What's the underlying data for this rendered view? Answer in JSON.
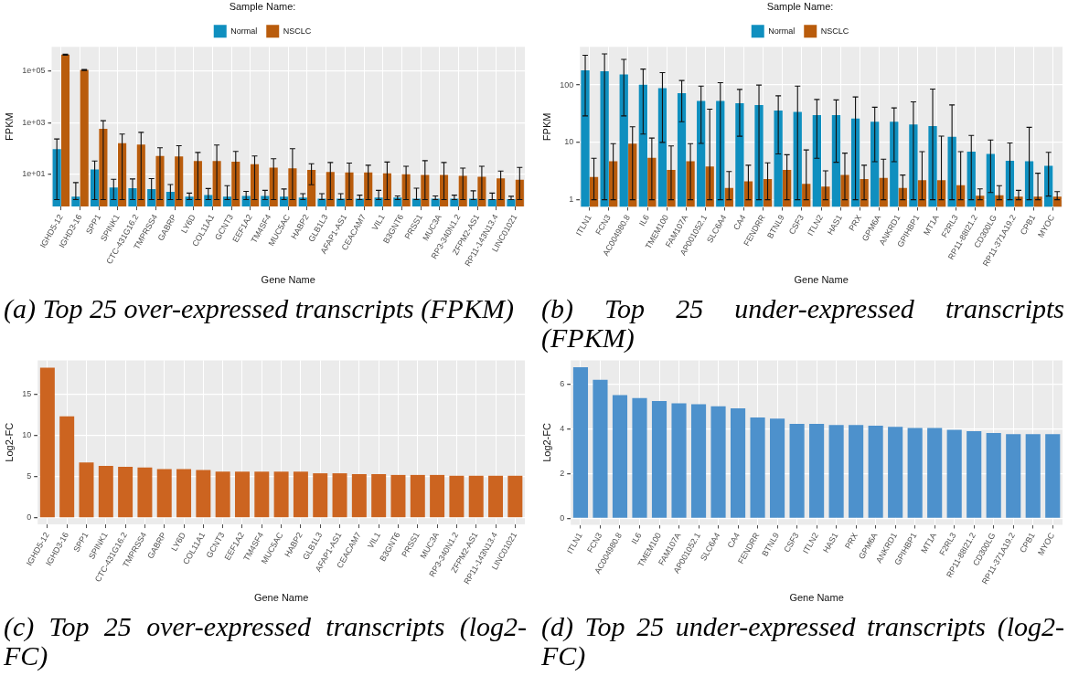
{
  "chart_data": [
    {
      "type": "bar",
      "title": "(a) Top 25 over-expressed transcripts (FPKM)",
      "xlabel": "Gene Name",
      "ylabel": "FPKM",
      "legend_title": "Sample Name:",
      "legend": "top",
      "grid": true,
      "log": "y",
      "ylim": [
        0.54,
        890000
      ],
      "yticks": [
        {
          "value": 10,
          "label": "1e+01"
        },
        {
          "value": 1000,
          "label": "1e+03"
        },
        {
          "value": 100000,
          "label": "1e+05"
        }
      ],
      "categories": [
        "IGHD5-12",
        "IGHD3-16",
        "SPP1",
        "SPINK1",
        "CTC-431G16.2",
        "TMPRSS4",
        "GABRP",
        "LY6D",
        "COL11A1",
        "GCNT3",
        "EEF1A2",
        "TM4SF4",
        "MUC5AC",
        "HABP2",
        "GLB1L3",
        "AFAP1-AS1",
        "CEACAM7",
        "VIL1",
        "B3GNT6",
        "PRSS1",
        "MUC3A",
        "RP3-340N1.2",
        "ZFPM2-AS1",
        "RP11-143N13.4",
        "LINC01021"
      ],
      "series": [
        {
          "name": "Normal",
          "color": "#0f8fbf",
          "values": [
            93,
            1.3,
            15,
            3.0,
            2.8,
            2.6,
            2.0,
            1.3,
            1.5,
            1.3,
            1.4,
            1.4,
            1.3,
            1.2,
            1.1,
            1.1,
            1.1,
            1.2,
            1.2,
            1.1,
            1.1,
            1.1,
            1.1,
            1.05,
            1.05
          ],
          "errors": [
            [
              1,
              230
            ],
            [
              1,
              4.6
            ],
            [
              1,
              32
            ],
            [
              1,
              6.2
            ],
            [
              1,
              6.4
            ],
            [
              1,
              6.6
            ],
            [
              1,
              3.9
            ],
            [
              1,
              1.8
            ],
            [
              1,
              2.7
            ],
            [
              1,
              3.5
            ],
            [
              1,
              2.1
            ],
            [
              1,
              2.3
            ],
            [
              1,
              2.6
            ],
            [
              1,
              1.7
            ],
            [
              1,
              1.7
            ],
            [
              1,
              1.7
            ],
            [
              1,
              1.5
            ],
            [
              1,
              2.3
            ],
            [
              1,
              1.4
            ],
            [
              1,
              2.8
            ],
            [
              1,
              1.4
            ],
            [
              1,
              1.5
            ],
            [
              1,
              2.2
            ],
            [
              1,
              1.8
            ],
            [
              1,
              1.35
            ]
          ]
        },
        {
          "name": "NSCLC",
          "color": "#b95c0c",
          "values": [
            440000,
            112000,
            570,
            158,
            138,
            50,
            48,
            32,
            32,
            30,
            24,
            17.5,
            16.5,
            14.4,
            12,
            11.5,
            11.5,
            10.6,
            9.8,
            9.2,
            9.2,
            8.5,
            7.8,
            6.8,
            5.9
          ],
          "errors": [
            [
              420000,
              460000
            ],
            [
              107000,
              117000
            ],
            [
              1,
              1180
            ],
            [
              1,
              355
            ],
            [
              1,
              415
            ],
            [
              1,
              104
            ],
            [
              1,
              126
            ],
            [
              1,
              69
            ],
            [
              1,
              134
            ],
            [
              1,
              75
            ],
            [
              1,
              50
            ],
            [
              1,
              39
            ],
            [
              1,
              96
            ],
            [
              3.8,
              25
            ],
            [
              1,
              28
            ],
            [
              1,
              26.6
            ],
            [
              1,
              21.9
            ],
            [
              1,
              29
            ],
            [
              1,
              20
            ],
            [
              1,
              33
            ],
            [
              1,
              28
            ],
            [
              1,
              17
            ],
            [
              1,
              20
            ],
            [
              1,
              12.9
            ],
            [
              1,
              18
            ]
          ]
        }
      ]
    },
    {
      "type": "bar",
      "title": "(b) Top 25 under-expressed transcripts (FPKM)",
      "xlabel": "Gene Name",
      "ylabel": "FPKM",
      "legend_title": "Sample Name:",
      "legend": "top",
      "grid": true,
      "log": "y",
      "ylim": [
        0.75,
        465
      ],
      "yticks": [
        1,
        10,
        100
      ],
      "categories": [
        "ITLN1",
        "FCN3",
        "AC004980.8",
        "IL6",
        "TMEM100",
        "FAM107A",
        "AP001052.1",
        "SLC6A4",
        "CA4",
        "FENDRR",
        "BTNL9",
        "CSF3",
        "ITLN2",
        "HAS1",
        "PRX",
        "GPM6A",
        "ANKRD1",
        "GPIHBP1",
        "MT1A",
        "F2RL3",
        "RP11-88I21.2",
        "CD300LG",
        "RP11-371A19.2",
        "CPB1",
        "MYOC"
      ],
      "series": [
        {
          "name": "Normal",
          "color": "#0f8fbf",
          "values": [
            181,
            174,
            153,
            101,
            88,
            72,
            53,
            53,
            48,
            45,
            36,
            34,
            30,
            30,
            26,
            23,
            23,
            20.5,
            19.2,
            12.5,
            6.9,
            6.3,
            4.8,
            4.7,
            3.9
          ],
          "errors": [
            [
              29,
              330
            ],
            [
              1,
              350
            ],
            [
              29,
              280
            ],
            [
              14,
              190
            ],
            [
              10,
              165
            ],
            [
              23,
              120
            ],
            [
              9.6,
              96
            ],
            [
              1,
              110
            ],
            [
              12.8,
              84
            ],
            [
              1,
              100
            ],
            [
              6.3,
              65
            ],
            [
              1,
              96
            ],
            [
              5.3,
              56
            ],
            [
              4.5,
              55
            ],
            [
              1,
              62
            ],
            [
              4.6,
              41
            ],
            [
              4.6,
              40
            ],
            [
              1,
              51
            ],
            [
              1,
              85
            ],
            [
              1,
              45
            ],
            [
              1,
              13.2
            ],
            [
              1.34,
              11
            ],
            [
              1,
              9.8
            ],
            [
              1,
              18.3
            ],
            [
              1.16,
              6.7
            ]
          ]
        },
        {
          "name": "NSCLC",
          "color": "#b95c0c",
          "values": [
            2.5,
            4.7,
            9.5,
            5.4,
            3.3,
            4.7,
            3.8,
            1.6,
            2.1,
            2.3,
            3.3,
            1.9,
            1.7,
            2.7,
            2.3,
            2.4,
            1.6,
            2.2,
            2.2,
            1.8,
            1.18,
            1.2,
            1.13,
            1.13,
            1.13
          ],
          "errors": [
            [
              1,
              5.3
            ],
            [
              1,
              9.5
            ],
            [
              1,
              18.7
            ],
            [
              1,
              11.9
            ],
            [
              1,
              8.7
            ],
            [
              1,
              9.5
            ],
            [
              1,
              38
            ],
            [
              1,
              3.1
            ],
            [
              1,
              4.0
            ],
            [
              1,
              4.4
            ],
            [
              1,
              6.1
            ],
            [
              1,
              7.4
            ],
            [
              1,
              3.2
            ],
            [
              1,
              6.5
            ],
            [
              1,
              4.0
            ],
            [
              1,
              5.1
            ],
            [
              1,
              2.7
            ],
            [
              1,
              6.9
            ],
            [
              1,
              12.9
            ],
            [
              1,
              6.9
            ],
            [
              1,
              1.55
            ],
            [
              1,
              1.76
            ],
            [
              1,
              1.46
            ],
            [
              1,
              2.9
            ],
            [
              1,
              1.39
            ]
          ]
        }
      ]
    },
    {
      "type": "bar",
      "title": "(c) Top 25 over-expressed transcripts (log2-FC)",
      "xlabel": "Gene Name",
      "ylabel": "Log2-FC",
      "grid": true,
      "ylim": [
        -0.8,
        19.1
      ],
      "yticks": [
        0,
        5,
        10,
        15
      ],
      "color": "#cc6420",
      "categories": [
        "IGHD5-12",
        "IGHD3-16",
        "SPP1",
        "SPINK1",
        "CTC-431G16.2",
        "TMPRSS4",
        "GABRP",
        "LY6D",
        "COL11A1",
        "GCNT3",
        "EEF1A2",
        "TM4SF4",
        "MUC5AC",
        "HABP2",
        "GLB1L3",
        "AFAP1-AS1",
        "CEACAM7",
        "VIL1",
        "B3GNT6",
        "PRSS1",
        "MUC3A",
        "RP3-340N1.2",
        "ZFPM2-AS1",
        "RP11-143N13.4",
        "LINC01021"
      ],
      "values": [
        18.2,
        12.3,
        6.7,
        6.3,
        6.2,
        6.1,
        5.9,
        5.9,
        5.8,
        5.6,
        5.6,
        5.6,
        5.6,
        5.6,
        5.4,
        5.4,
        5.3,
        5.3,
        5.2,
        5.2,
        5.2,
        5.1,
        5.1,
        5.1,
        5.1
      ]
    },
    {
      "type": "bar",
      "title": "(d) Top 25 under-expressed transcripts (log2-FC)",
      "xlabel": "Gene Name",
      "ylabel": "Log2-FC",
      "grid": true,
      "ylim": [
        -0.29,
        7.09
      ],
      "yticks": [
        0,
        2,
        4,
        6
      ],
      "color": "#4d91cc",
      "categories": [
        "ITLN1",
        "FCN3",
        "AC004980.8",
        "IL6",
        "TMEM100",
        "FAM107A",
        "AP001052.1",
        "SLC6A4",
        "CA4",
        "FENDRR",
        "BTNL9",
        "CSF3",
        "ITLN2",
        "HAS1",
        "PRX",
        "GPM6A",
        "ANKRD1",
        "GPIHBP1",
        "MT1A",
        "F2RL3",
        "RP11-88I21.2",
        "CD300LG",
        "RP11-371A19.2",
        "CPB1",
        "MYOC"
      ],
      "values": [
        6.78,
        6.22,
        5.53,
        5.4,
        5.26,
        5.16,
        5.12,
        5.03,
        4.93,
        4.52,
        4.47,
        4.24,
        4.24,
        4.19,
        4.19,
        4.16,
        4.1,
        4.05,
        4.05,
        3.97,
        3.91,
        3.83,
        3.78,
        3.78,
        3.78
      ]
    }
  ]
}
